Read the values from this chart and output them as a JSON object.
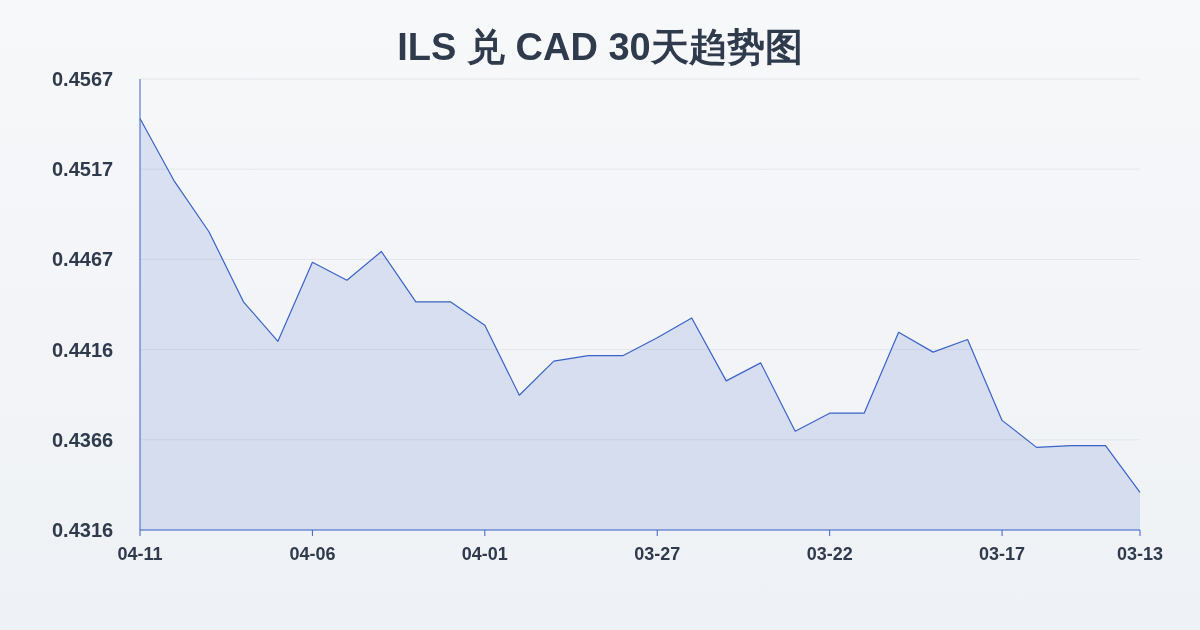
{
  "chart_data": {
    "type": "area",
    "title": "ILS 兑 CAD 30天趋势图",
    "categories": [
      "04-11",
      null,
      null,
      null,
      null,
      "04-06",
      null,
      null,
      null,
      null,
      "04-01",
      null,
      null,
      null,
      null,
      "03-27",
      null,
      null,
      null,
      null,
      "03-22",
      null,
      null,
      null,
      null,
      "03-17",
      null,
      null,
      null,
      "03-13"
    ],
    "values": [
      0.4545,
      0.451,
      0.4482,
      0.4443,
      0.4421,
      0.4465,
      0.4455,
      0.4471,
      0.4443,
      0.4443,
      0.443,
      0.4391,
      0.441,
      0.4413,
      0.4413,
      0.4423,
      0.4434,
      0.4399,
      0.4409,
      0.4371,
      0.4381,
      0.4381,
      0.4426,
      0.4415,
      0.4422,
      0.4377,
      0.4362,
      0.4363,
      0.4363,
      0.4337
    ],
    "color": "#3a62c9",
    "ylim": [
      0.4316,
      0.4567
    ],
    "yticks": [
      0.4316,
      {
        "value": 0.43662,
        "label": "0.4366"
      },
      {
        "value": 0.44164,
        "label": "0.4416"
      },
      {
        "value": 0.44666,
        "label": "0.4467"
      },
      {
        "value": 0.45168,
        "label": "0.4517"
      },
      0.4567
    ],
    "grid": "y"
  }
}
